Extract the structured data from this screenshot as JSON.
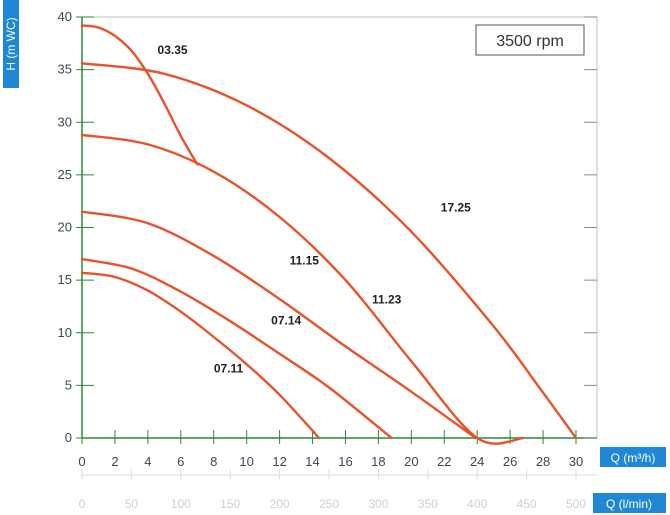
{
  "chart_data": {
    "type": "line",
    "speed_label": "3500 rpm",
    "ylabel": "H (m WC)",
    "xlabel": "Q (m³/h)",
    "xlabel_secondary": "Q (l/min)",
    "xlim": [
      0,
      30
    ],
    "ylim": [
      0,
      40
    ],
    "x_ticks": [
      "0",
      "2",
      "4",
      "6",
      "8",
      "10",
      "12",
      "14",
      "16",
      "18",
      "20",
      "22",
      "24",
      "26",
      "28",
      "30"
    ],
    "y_ticks": [
      "0",
      "5",
      "10",
      "15",
      "20",
      "25",
      "30",
      "35",
      "40"
    ],
    "x2_ticks": [
      "0",
      "50",
      "100",
      "150",
      "200",
      "250",
      "300",
      "350",
      "400",
      "450",
      "500"
    ],
    "grid": false,
    "curve_color": "#e8532a",
    "axis_color": "#2a8a3a",
    "label_box_color": "#1e88d6",
    "series": [
      {
        "name": "03.35",
        "x": [
          0,
          1,
          2,
          3,
          4,
          5,
          6,
          7
        ],
        "y": [
          39.2,
          39.0,
          38.2,
          36.8,
          34.6,
          31.8,
          28.7,
          26
        ]
      },
      {
        "name": "17.25",
        "x": [
          0,
          5,
          10,
          15,
          20,
          25,
          28,
          30
        ],
        "y": [
          35.6,
          34.6,
          31.6,
          26.6,
          19.6,
          10.6,
          4.3,
          0
        ]
      },
      {
        "name": "11.23",
        "x": [
          0,
          4,
          8,
          12,
          16,
          20,
          24,
          26.8
        ],
        "y": [
          28.8,
          27.9,
          25.3,
          21.0,
          15.0,
          7.3,
          0,
          0
        ]
      },
      {
        "name": "11.15",
        "x": [
          0,
          4,
          8,
          12,
          16,
          20,
          23.9
        ],
        "y": [
          21.5,
          20.4,
          17.3,
          13.2,
          8.7,
          4.4,
          0
        ]
      },
      {
        "name": "07.14",
        "x": [
          0,
          3,
          6,
          9,
          12,
          15,
          18.8
        ],
        "y": [
          17.0,
          16.1,
          13.9,
          11.1,
          8.0,
          4.8,
          0
        ]
      },
      {
        "name": "07.11",
        "x": [
          0,
          2,
          4,
          6,
          8,
          10,
          12,
          14.4
        ],
        "y": [
          15.7,
          15.3,
          14.0,
          12.0,
          9.6,
          7.0,
          4.1,
          0
        ]
      }
    ],
    "labels": [
      {
        "text": "03.35",
        "x": 5.5,
        "y": 36.5
      },
      {
        "text": "17.25",
        "x": 22.7,
        "y": 21.5
      },
      {
        "text": "11.15",
        "x": 13.5,
        "y": 16.5
      },
      {
        "text": "11.23",
        "x": 18.5,
        "y": 12.8
      },
      {
        "text": "07.14",
        "x": 12.4,
        "y": 10.8
      },
      {
        "text": "07.11",
        "x": 8.9,
        "y": 6.2
      }
    ]
  }
}
